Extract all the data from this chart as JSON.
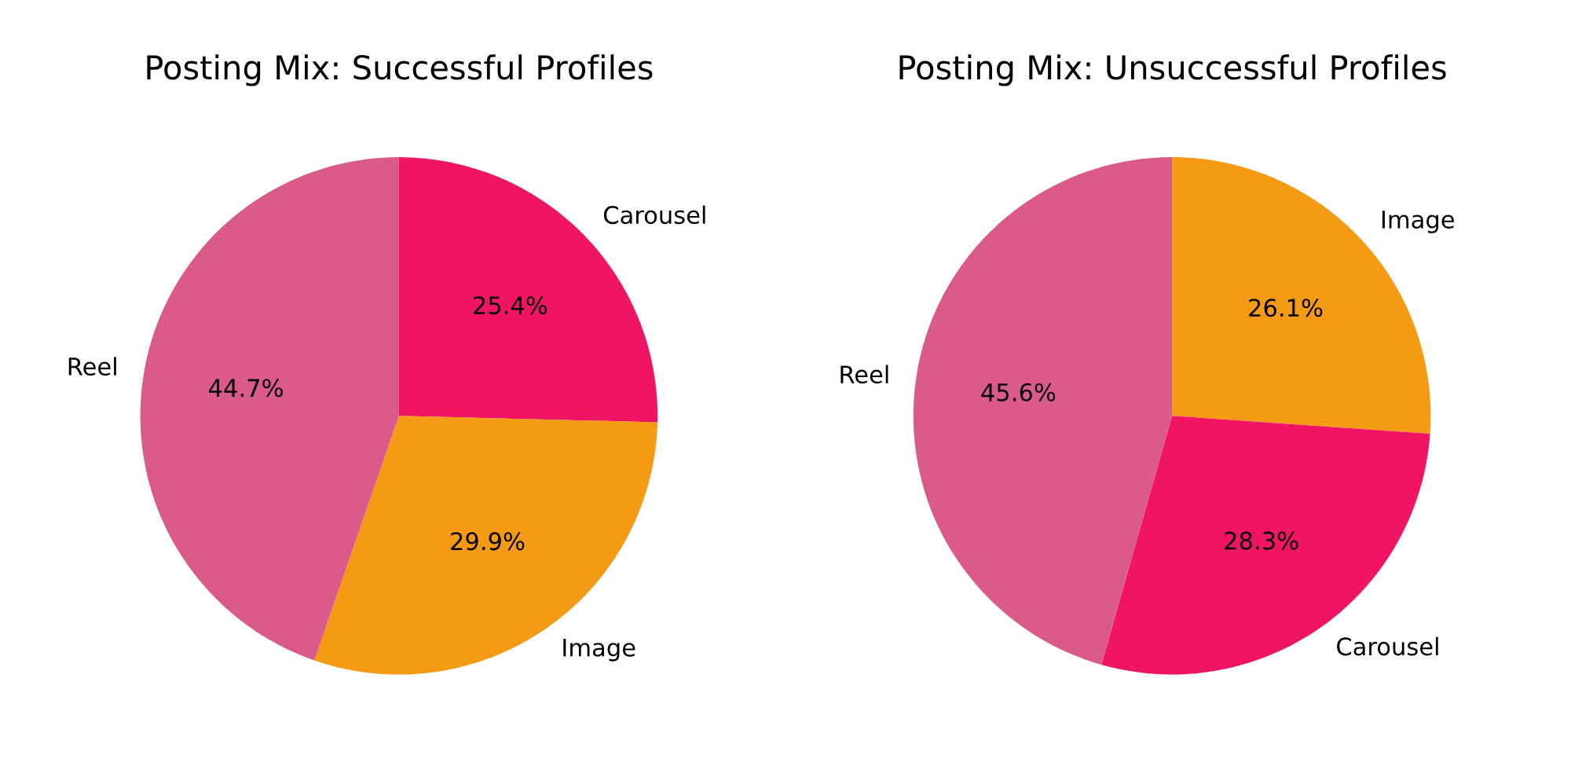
{
  "chart_data": [
    {
      "type": "pie",
      "title": "Posting Mix: Successful Profiles",
      "categories": [
        "Carousel",
        "Image",
        "Reel"
      ],
      "values": [
        25.4,
        29.9,
        44.7
      ],
      "colors": [
        "#f01464",
        "#f59a14",
        "#da5a8a"
      ],
      "value_labels": [
        "25.4%",
        "29.9%",
        "44.7%"
      ]
    },
    {
      "type": "pie",
      "title": "Posting Mix: Unsuccessful Profiles",
      "categories": [
        "Image",
        "Carousel",
        "Reel"
      ],
      "values": [
        26.1,
        28.3,
        45.6
      ],
      "colors": [
        "#f59a14",
        "#f01464",
        "#da5a8a"
      ],
      "value_labels": [
        "26.1%",
        "28.3%",
        "45.6%"
      ]
    }
  ]
}
